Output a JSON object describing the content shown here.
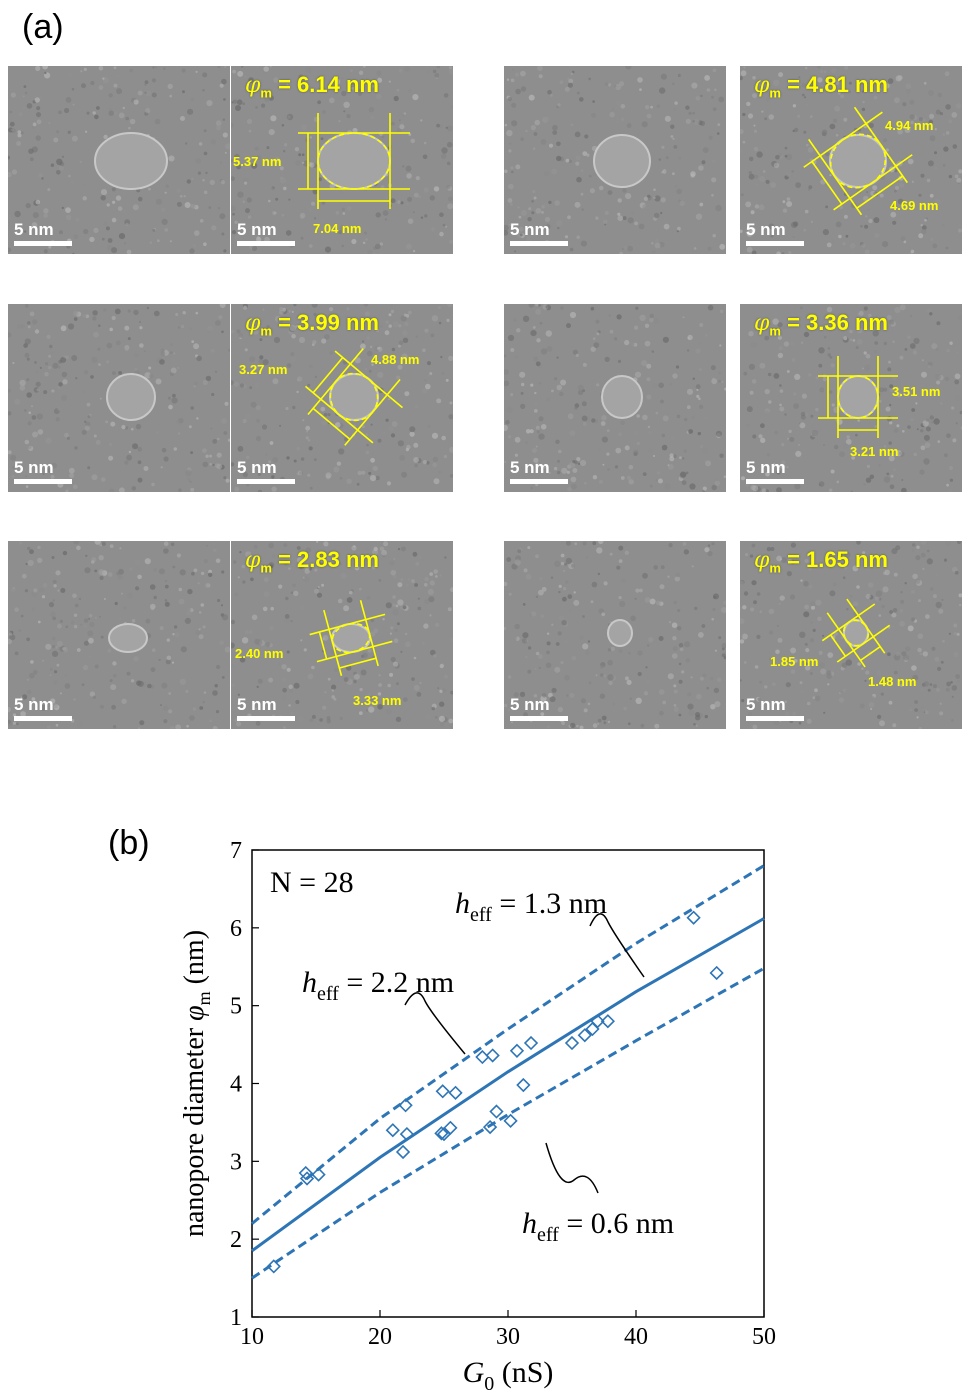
{
  "panel_a": {
    "label": "(a)",
    "rows": [
      {
        "left": {
          "phi_value": "= 6.14 nm",
          "measures": [
            "5.37 nm",
            "7.04 nm"
          ],
          "scale": "5 nm",
          "scale2": "5 nm"
        },
        "right": {
          "phi_value": "= 4.81 nm",
          "measures": [
            "4.94 nm",
            "4.69 nm"
          ],
          "scale": "5 nm",
          "scale2": "5 nm"
        }
      },
      {
        "left": {
          "phi_value": "= 3.99 nm",
          "measures": [
            "3.27 nm",
            "4.88 nm"
          ],
          "scale": "5 nm",
          "scale2": "5 nm"
        },
        "right": {
          "phi_value": "= 3.36 nm",
          "measures": [
            "3.51 nm",
            "3.21 nm"
          ],
          "scale": "5 nm",
          "scale2": "5 nm"
        }
      },
      {
        "left": {
          "phi_value": "= 2.83 nm",
          "measures": [
            "2.40 nm",
            "3.33 nm"
          ],
          "scale": "5 nm",
          "scale2": "5 nm"
        },
        "right": {
          "phi_value": "= 1.65 nm",
          "measures": [
            "1.85 nm",
            "1.48 nm"
          ],
          "scale": "5 nm",
          "scale2": "5 nm"
        }
      }
    ],
    "phi_symbol": "φ",
    "phi_sub": "m"
  },
  "panel_b": {
    "label": "(b)",
    "n_label": "N = 28"
  },
  "chart_data": {
    "type": "scatter",
    "xlabel_sym": "G",
    "xlabel_sub": "0",
    "xlabel_unit": "(nS)",
    "ylabel_text": "nanopore diameter",
    "ylabel_sym": "φ",
    "ylabel_sub": "m",
    "ylabel_unit": "(nm)",
    "xlim": [
      10,
      50
    ],
    "ylim": [
      1,
      7
    ],
    "xticks": [
      10,
      20,
      30,
      40,
      50
    ],
    "yticks": [
      1,
      2,
      3,
      4,
      5,
      6,
      7
    ],
    "color": "#2e75b6",
    "points": [
      [
        11.7,
        1.65
      ],
      [
        14.2,
        2.85
      ],
      [
        14.3,
        2.78
      ],
      [
        15.2,
        2.83
      ],
      [
        21.0,
        3.4
      ],
      [
        21.8,
        3.12
      ],
      [
        22.0,
        3.72
      ],
      [
        22.1,
        3.35
      ],
      [
        24.8,
        3.36
      ],
      [
        24.9,
        3.9
      ],
      [
        25.0,
        3.35
      ],
      [
        25.5,
        3.43
      ],
      [
        25.9,
        3.88
      ],
      [
        28.0,
        4.34
      ],
      [
        28.6,
        3.44
      ],
      [
        28.8,
        4.36
      ],
      [
        29.1,
        3.64
      ],
      [
        30.2,
        3.52
      ],
      [
        30.7,
        4.42
      ],
      [
        31.2,
        3.98
      ],
      [
        31.8,
        4.52
      ],
      [
        35.0,
        4.52
      ],
      [
        36.0,
        4.62
      ],
      [
        36.6,
        4.7
      ],
      [
        37.0,
        4.8
      ],
      [
        37.8,
        4.8
      ],
      [
        44.5,
        6.13
      ],
      [
        46.3,
        5.42
      ]
    ],
    "curves": [
      {
        "h": "1.3 nm",
        "style": "solid",
        "x": [
          10,
          20,
          30,
          40,
          50
        ],
        "y": [
          1.85,
          3.05,
          4.15,
          5.18,
          6.12
        ]
      },
      {
        "h": "2.2 nm",
        "style": "dashed",
        "x": [
          10,
          20,
          30,
          40,
          50
        ],
        "y": [
          2.2,
          3.55,
          4.7,
          5.8,
          6.8
        ]
      },
      {
        "h": "0.6 nm",
        "style": "dashed",
        "x": [
          10,
          20,
          30,
          40,
          50
        ],
        "y": [
          1.5,
          2.6,
          3.6,
          4.55,
          5.48
        ]
      }
    ],
    "annotations": [
      {
        "sym": "h",
        "sub": "eff",
        "value": "= 1.3 nm"
      },
      {
        "sym": "h",
        "sub": "eff",
        "value": "= 2.2 nm"
      },
      {
        "sym": "h",
        "sub": "eff",
        "value": "= 0.6 nm"
      }
    ]
  }
}
